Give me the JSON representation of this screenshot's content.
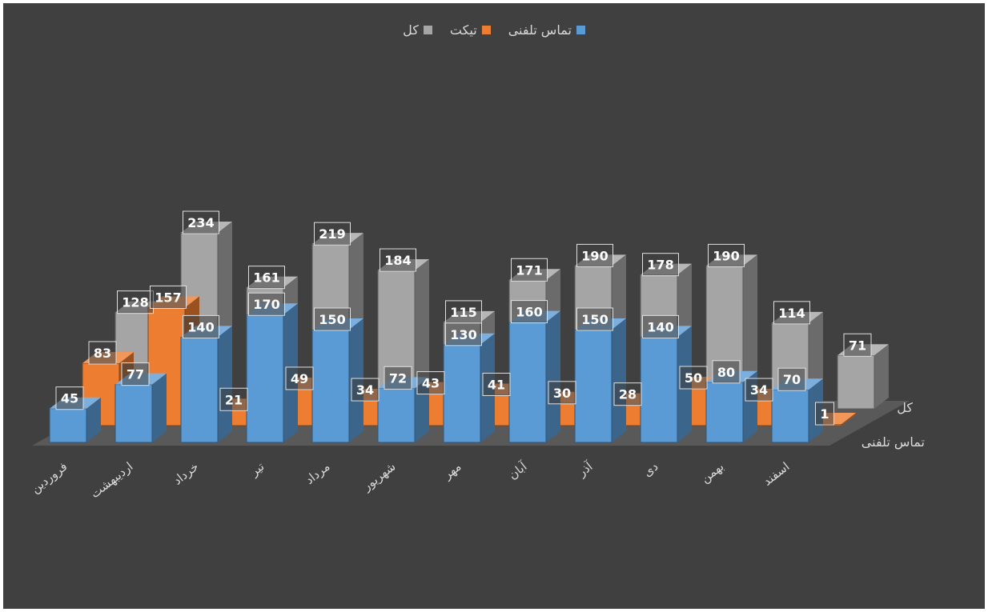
{
  "chart_data": {
    "type": "bar",
    "categories": [
      "فروردین",
      "اردیبهشت",
      "خرداد",
      "تیر",
      "مرداد",
      "شهریور",
      "مهر",
      "آبان",
      "آذر",
      "دی",
      "بهمن",
      "اسفند"
    ],
    "series": [
      {
        "name": "تماس تلفنی",
        "color": "#5b9bd5",
        "values": [
          45,
          77,
          140,
          170,
          150,
          72,
          130,
          160,
          150,
          140,
          80,
          70
        ]
      },
      {
        "name": "تیکت",
        "color": "#ed7d31",
        "values": [
          83,
          157,
          21,
          49,
          34,
          43,
          41,
          30,
          28,
          50,
          34,
          1
        ]
      },
      {
        "name": "کل",
        "color": "#a5a5a5",
        "values": [
          128,
          234,
          161,
          219,
          184,
          115,
          171,
          190,
          178,
          190,
          114,
          71
        ]
      }
    ],
    "depth_axis_labels": [
      "تماس تلفنی",
      "کل"
    ],
    "legend_position": "top",
    "grid": false,
    "data_labels": true
  },
  "background_color": "#404040"
}
